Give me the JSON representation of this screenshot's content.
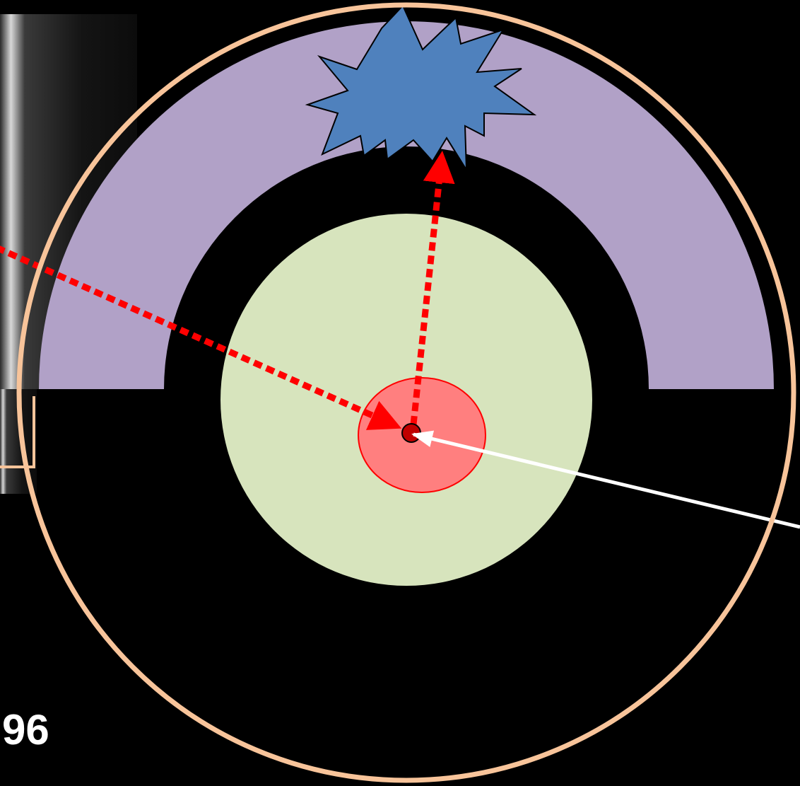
{
  "colors": {
    "background": "#000000",
    "outer_ring": "#f8c49a",
    "arch_band": "#b1a1c7",
    "core_disc": "#d7e4bd",
    "center_spot": "#ff7f7f",
    "center_spot_border": "#ff0000",
    "burst": "#4f81bd",
    "dotted_arrows": "#ff0000",
    "pointer_arrow": "#ffffff",
    "photo_panel": "#111111"
  },
  "icons": {
    "burst": "starburst-icon",
    "center_dot": "dot-icon"
  },
  "labels": {
    "partial_number": "96"
  }
}
